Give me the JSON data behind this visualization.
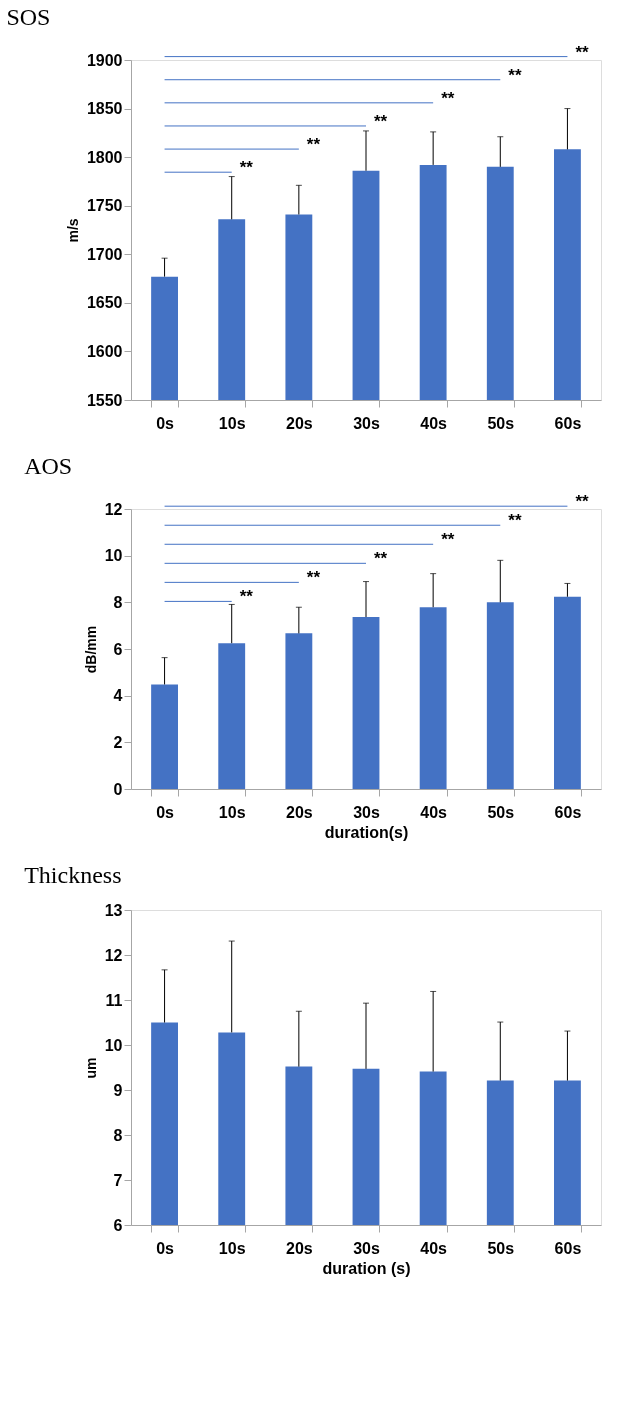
{
  "chart_data": [
    {
      "type": "bar",
      "title": "SOS",
      "ylabel": "m/s",
      "categories": [
        "0s",
        "10s",
        "20s",
        "30s",
        "40s",
        "50s",
        "60s"
      ],
      "color": "#4472c4",
      "values": [
        1677,
        1736,
        1741,
        1786,
        1792,
        1790,
        1808
      ],
      "errors": [
        [
          1677,
          1696
        ],
        [
          1736,
          1780
        ],
        [
          1741,
          1771
        ],
        [
          1786,
          1827
        ],
        [
          1792,
          1826
        ],
        [
          1790,
          1821
        ],
        [
          1808,
          1850
        ]
      ],
      "ylim": [
        1550,
        1900
      ],
      "yticks": [
        1550,
        1600,
        1650,
        1700,
        1750,
        1800,
        1850,
        1900
      ],
      "grid": false,
      "annotations": [
        "**",
        "**",
        "**",
        "**",
        "**",
        "**"
      ]
    },
    {
      "type": "bar",
      "title": "AOS",
      "ylabel": "dB/mm",
      "xlabel": "duration(s)",
      "categories": [
        "0s",
        "10s",
        "20s",
        "30s",
        "40s",
        "50s",
        "60s"
      ],
      "color": "#4472c4",
      "values": [
        4.48,
        6.25,
        6.67,
        7.37,
        7.79,
        8.0,
        8.24
      ],
      "errors": [
        [
          4.48,
          5.63
        ],
        [
          6.25,
          7.91
        ],
        [
          6.67,
          7.79
        ],
        [
          7.37,
          8.89
        ],
        [
          7.79,
          9.23
        ],
        [
          8.0,
          9.8
        ],
        [
          8.24,
          8.81
        ]
      ],
      "ylim": [
        0,
        12
      ],
      "yticks": [
        0,
        2,
        4,
        6,
        8,
        10,
        12
      ],
      "grid": false,
      "annotations": [
        "**",
        "**",
        "**",
        "**",
        "**",
        "**"
      ]
    },
    {
      "type": "bar",
      "title": "Thickness",
      "ylabel": "um",
      "xlabel": "duration (s)",
      "categories": [
        "0s",
        "10s",
        "20s",
        "30s",
        "40s",
        "50s",
        "60s"
      ],
      "color": "#4472c4",
      "values": [
        10.5,
        10.28,
        9.52,
        9.47,
        9.41,
        9.21,
        9.21
      ],
      "errors": [
        [
          10.5,
          11.67
        ],
        [
          10.28,
          12.31
        ],
        [
          9.52,
          10.75
        ],
        [
          9.47,
          10.93
        ],
        [
          9.41,
          11.19
        ],
        [
          9.21,
          10.51
        ],
        [
          9.21,
          10.31
        ]
      ],
      "ylim": [
        6,
        13
      ],
      "yticks": [
        6,
        7,
        8,
        9,
        10,
        11,
        12,
        13
      ],
      "grid": false
    }
  ]
}
